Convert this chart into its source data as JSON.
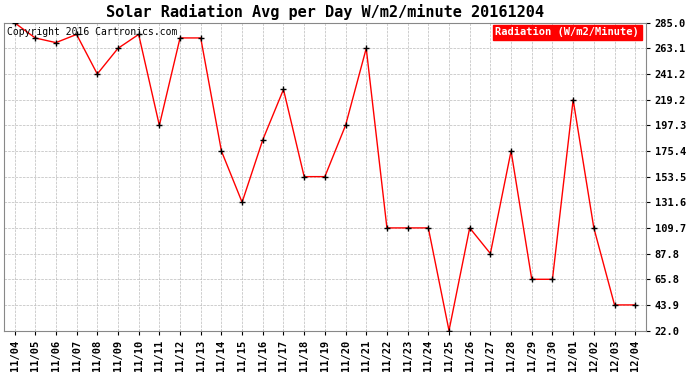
{
  "title": "Solar Radiation Avg per Day W/m2/minute 20161204",
  "copyright_text": "Copyright 2016 Cartronics.com",
  "legend_label": "Radiation (W/m2/Minute)",
  "x_labels": [
    "11/04",
    "11/05",
    "11/06",
    "11/07",
    "11/08",
    "11/09",
    "11/10",
    "11/11",
    "11/12",
    "11/13",
    "11/14",
    "11/15",
    "11/16",
    "11/17",
    "11/18",
    "11/19",
    "11/20",
    "11/21",
    "11/22",
    "11/23",
    "11/24",
    "11/25",
    "11/26",
    "11/27",
    "11/28",
    "11/29",
    "11/30",
    "12/01",
    "12/02",
    "12/03",
    "12/04"
  ],
  "y_values": [
    285.0,
    272.0,
    268.0,
    275.0,
    241.2,
    263.1,
    275.0,
    197.3,
    272.0,
    272.0,
    175.4,
    131.6,
    185.0,
    228.0,
    153.5,
    153.5,
    197.3,
    263.1,
    109.7,
    109.7,
    109.7,
    22.0,
    109.7,
    87.8,
    175.4,
    65.8,
    65.8,
    219.2,
    109.7,
    43.9,
    43.9
  ],
  "y_ticks": [
    22.0,
    43.9,
    65.8,
    87.8,
    109.7,
    131.6,
    153.5,
    175.4,
    197.3,
    219.2,
    241.2,
    263.1,
    285.0
  ],
  "line_color": "red",
  "marker_color": "black",
  "bg_color": "#ffffff",
  "grid_color": "#bbbbbb",
  "legend_bg": "red",
  "legend_text_color": "white",
  "title_fontsize": 11,
  "tick_fontsize": 7.5,
  "copyright_fontsize": 7,
  "legend_fontsize": 7.5,
  "ylim": [
    22.0,
    285.0
  ]
}
